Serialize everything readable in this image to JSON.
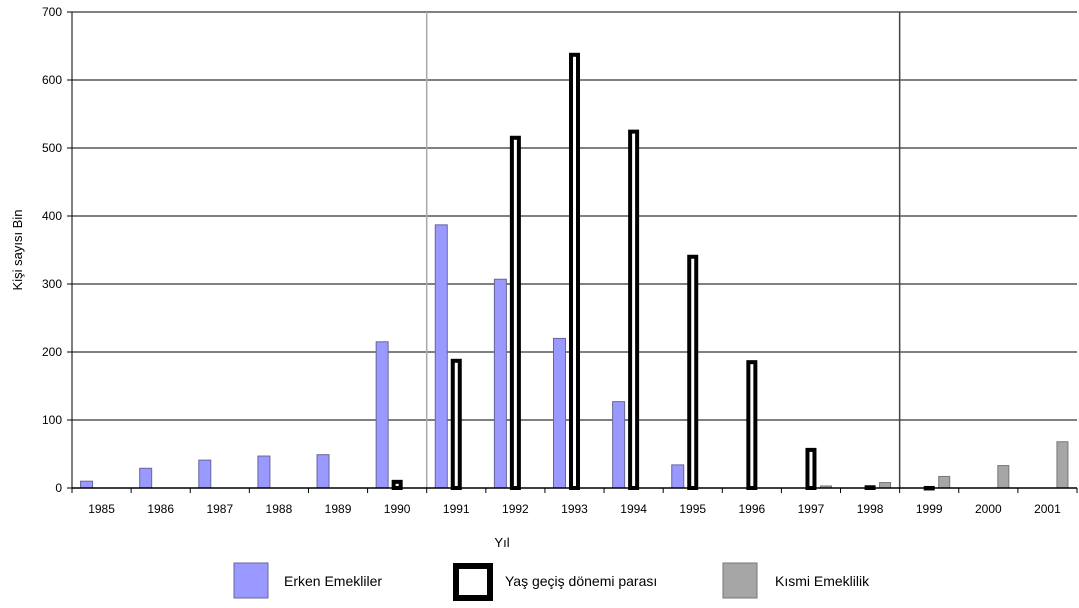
{
  "chart_data": {
    "type": "bar",
    "xlabel": "Yıl",
    "ylabel": "Kişi sayısı Bin",
    "ylim": [
      0,
      700
    ],
    "yticks": [
      0,
      100,
      200,
      300,
      400,
      500,
      600,
      700
    ],
    "grid": true,
    "legend_position": "bottom",
    "categories": [
      "1985",
      "1986",
      "1987",
      "1988",
      "1989",
      "1990",
      "1991",
      "1992",
      "1993",
      "1994",
      "1995",
      "1996",
      "1997",
      "1998",
      "1999",
      "2000",
      "2001"
    ],
    "series": [
      {
        "name": "Erken Emekliler",
        "color": "#9999ff",
        "values": [
          10,
          29,
          41,
          47,
          49,
          215,
          387,
          307,
          220,
          127,
          34,
          0,
          0,
          0,
          0,
          0,
          0
        ]
      },
      {
        "name": "Yaş geçiş dönemi parası",
        "color": "#ffffff",
        "values": [
          0,
          0,
          0,
          0,
          0,
          12,
          190,
          518,
          640,
          527,
          343,
          188,
          59,
          4,
          3,
          0,
          0
        ]
      },
      {
        "name": "Kısmi Emeklilik",
        "color": "#a6a6a6",
        "values": [
          0,
          0,
          0,
          0,
          0,
          0,
          0,
          0,
          0,
          0,
          0,
          0,
          3,
          8,
          17,
          33,
          68
        ]
      }
    ]
  }
}
